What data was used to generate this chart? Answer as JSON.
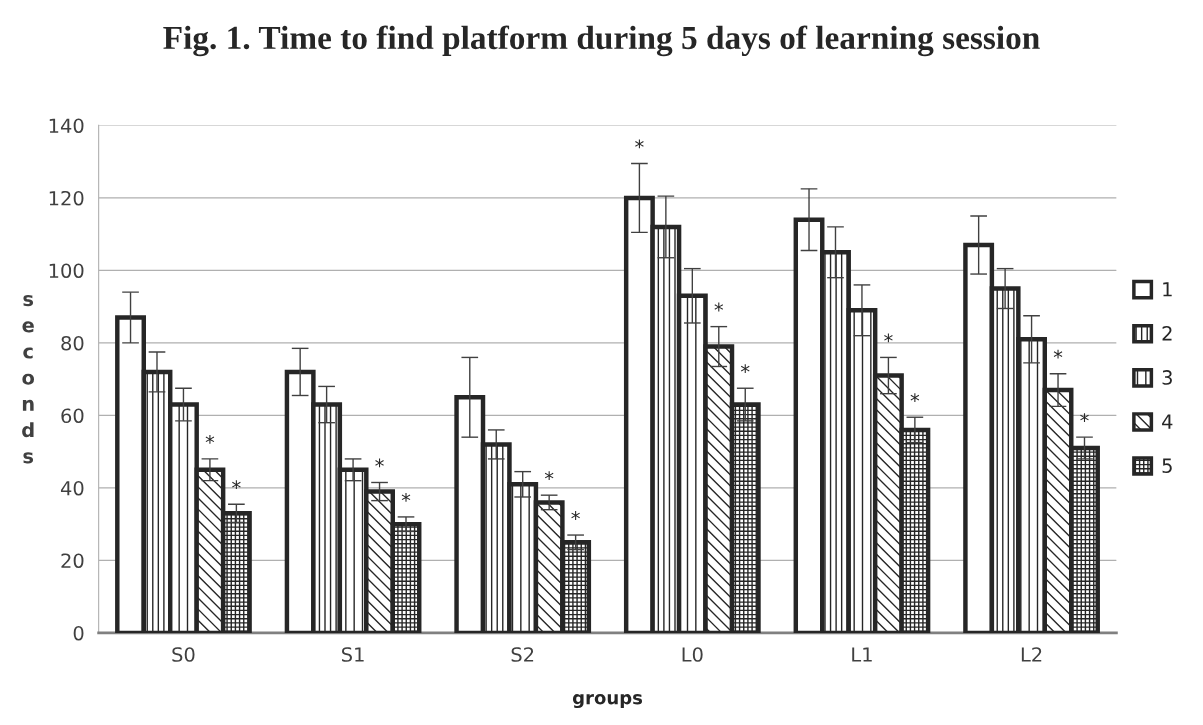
{
  "chart_data": {
    "type": "bar",
    "title": "Fig. 1. Time to find platform during 5 days of learning session",
    "xlabel": "groups",
    "ylabel": "seconds",
    "categories": [
      "S0",
      "S1",
      "S2",
      "L0",
      "L1",
      "L2"
    ],
    "series": [
      {
        "name": "1",
        "color": "#ffffff",
        "values": [
          87,
          72,
          65,
          120,
          114,
          107
        ],
        "errors": [
          7,
          6.5,
          11,
          9.5,
          8.5,
          8
        ],
        "value_labels": [
          null,
          null,
          null,
          "*",
          null,
          null
        ]
      },
      {
        "name": "2",
        "color": "#262626",
        "values": [
          72,
          63,
          52,
          112,
          105,
          95
        ],
        "errors": [
          5.5,
          5,
          4,
          8.5,
          7,
          5.5
        ]
      },
      {
        "name": "3",
        "color": "#262626",
        "values": [
          63,
          45,
          41,
          93,
          89,
          81
        ],
        "errors": [
          4.5,
          3,
          3.5,
          7.5,
          7,
          6.5
        ]
      },
      {
        "name": "4",
        "color": "#262626",
        "values": [
          45,
          39,
          36,
          79,
          71,
          67
        ],
        "errors": [
          3,
          2.5,
          2,
          5.5,
          5,
          4.5
        ],
        "value_labels": [
          "*",
          "*",
          "*",
          "*",
          "*",
          "*"
        ]
      },
      {
        "name": "5",
        "color": "#262626",
        "values": [
          33,
          30,
          25,
          63,
          56,
          51
        ],
        "errors": [
          2.5,
          2,
          2,
          4.5,
          3.5,
          3
        ],
        "value_labels": [
          "*",
          "*",
          "*",
          "*",
          "*",
          "*"
        ]
      }
    ],
    "ylim": [
      0,
      140
    ],
    "yticks": [
      0,
      20,
      40,
      60,
      80,
      100,
      120,
      140
    ],
    "grid": "y",
    "legend": "right"
  }
}
